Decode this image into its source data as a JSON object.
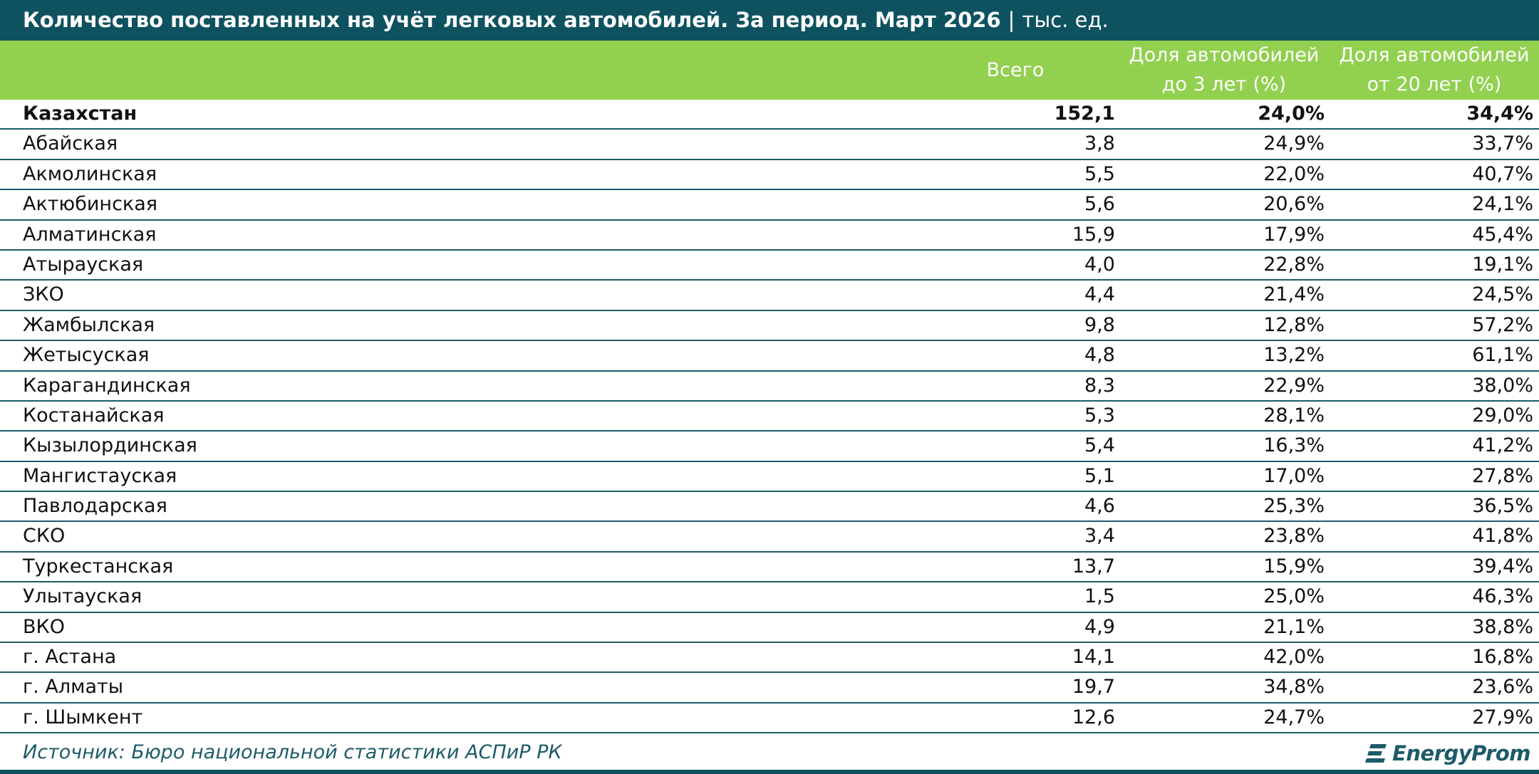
{
  "title": {
    "main": "Количество поставленных на учёт легковых автомобилей. За период. Март 2026",
    "separator": "|",
    "unit": "тыс. ед."
  },
  "colors": {
    "title_bar": "#0e5260",
    "header_bar": "#92d050",
    "row_line": "#1d5b68",
    "source_text": "#1d5b68"
  },
  "chart_data": {
    "type": "table",
    "columns": [
      {
        "key": "total",
        "label": [
          "Всего"
        ]
      },
      {
        "key": "under3",
        "label": [
          "Доля автомобилей",
          "до 3 лет (%)"
        ]
      },
      {
        "key": "over20",
        "label": [
          "Доля автомобилей",
          "от 20 лет (%)"
        ]
      }
    ],
    "rows": [
      {
        "name": "Казахстан",
        "total": "152,1",
        "under3": "24,0%",
        "over20": "34,4%",
        "bold": true
      },
      {
        "name": "Абайская",
        "total": "3,8",
        "under3": "24,9%",
        "over20": "33,7%"
      },
      {
        "name": "Акмолинская",
        "total": "5,5",
        "under3": "22,0%",
        "over20": "40,7%"
      },
      {
        "name": "Актюбинская",
        "total": "5,6",
        "under3": "20,6%",
        "over20": "24,1%"
      },
      {
        "name": "Алматинская",
        "total": "15,9",
        "under3": "17,9%",
        "over20": "45,4%"
      },
      {
        "name": "Атырауская",
        "total": "4,0",
        "under3": "22,8%",
        "over20": "19,1%"
      },
      {
        "name": "ЗКО",
        "total": "4,4",
        "under3": "21,4%",
        "over20": "24,5%"
      },
      {
        "name": "Жамбылская",
        "total": "9,8",
        "under3": "12,8%",
        "over20": "57,2%"
      },
      {
        "name": "Жетысуская",
        "total": "4,8",
        "under3": "13,2%",
        "over20": "61,1%"
      },
      {
        "name": "Карагандинская",
        "total": "8,3",
        "under3": "22,9%",
        "over20": "38,0%"
      },
      {
        "name": "Костанайская",
        "total": "5,3",
        "under3": "28,1%",
        "over20": "29,0%"
      },
      {
        "name": "Кызылординская",
        "total": "5,4",
        "under3": "16,3%",
        "over20": "41,2%"
      },
      {
        "name": "Мангистауская",
        "total": "5,1",
        "under3": "17,0%",
        "over20": "27,8%"
      },
      {
        "name": "Павлодарская",
        "total": "4,6",
        "under3": "25,3%",
        "over20": "36,5%"
      },
      {
        "name": "СКО",
        "total": "3,4",
        "under3": "23,8%",
        "over20": "41,8%"
      },
      {
        "name": "Туркестанская",
        "total": "13,7",
        "under3": "15,9%",
        "over20": "39,4%"
      },
      {
        "name": "Улытауская",
        "total": "1,5",
        "under3": "25,0%",
        "over20": "46,3%"
      },
      {
        "name": "ВКО",
        "total": "4,9",
        "under3": "21,1%",
        "over20": "38,8%"
      },
      {
        "name": "г. Астана",
        "total": "14,1",
        "under3": "42,0%",
        "over20": "16,8%"
      },
      {
        "name": "г. Алматы",
        "total": "19,7",
        "under3": "34,8%",
        "over20": "23,6%"
      },
      {
        "name": "г. Шымкент",
        "total": "12,6",
        "under3": "24,7%",
        "over20": "27,9%"
      }
    ]
  },
  "footer": {
    "source": "Источник: Бюро национальной статистики АСПиР РК",
    "logo_text": "EnergyProm",
    "logo_icon": "energyprom-logo-icon"
  }
}
